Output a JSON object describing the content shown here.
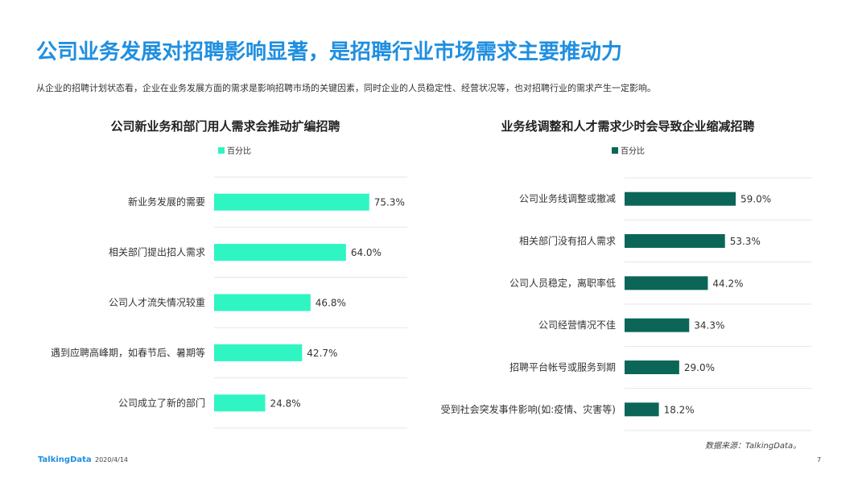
{
  "page": {
    "title": "公司业务发展对招聘影响显著，是招聘行业市场需求主要推动力",
    "subtitle": "从企业的招聘计划状态看，企业在业务发展方面的需求是影响招聘市场的关键因素，同时企业的人员稳定性、经营状况等，也对招聘行业的需求产生一定影响。"
  },
  "footer": {
    "logo": "TalkingData",
    "date": "2020/4/14",
    "source": "数据来源：TalkingData。",
    "page_number": "7"
  },
  "colors": {
    "title": "#1f8fe0",
    "left_bar": "#2ef5c2",
    "right_bar": "#0b6658"
  },
  "chart_data": [
    {
      "type": "bar",
      "orientation": "horizontal",
      "title": "公司新业务和部门用人需求会推动扩编招聘",
      "legend": "百分比",
      "legend_position": "top",
      "categories": [
        "新业务发展的需要",
        "相关部门提出招人需求",
        "公司人才流失情况较重",
        "遇到应聘高峰期，如春节后、暑期等",
        "公司成立了新的部门"
      ],
      "series": [
        {
          "name": "百分比",
          "values": [
            75.3,
            64.0,
            46.8,
            42.7,
            24.8
          ]
        }
      ],
      "value_labels": [
        "75.3%",
        "64.0%",
        "46.8%",
        "42.7%",
        "24.8%"
      ],
      "xlim": [
        0,
        100
      ],
      "grid": true
    },
    {
      "type": "bar",
      "orientation": "horizontal",
      "title": "业务线调整和人才需求少时会导致企业缩减招聘",
      "legend": "百分比",
      "legend_position": "top",
      "categories": [
        "公司业务线调整或撤减",
        "相关部门没有招人需求",
        "公司人员稳定，离职率低",
        "公司经营情况不佳",
        "招聘平台帐号或服务到期",
        "受到社会突发事件影响(如:疫情、灾害等)"
      ],
      "series": [
        {
          "name": "百分比",
          "values": [
            59.0,
            53.3,
            44.2,
            34.3,
            29.0,
            18.2
          ]
        }
      ],
      "value_labels": [
        "59.0%",
        "53.3%",
        "44.2%",
        "34.3%",
        "29.0%",
        "18.2%"
      ],
      "xlim": [
        0,
        100
      ],
      "grid": true
    }
  ]
}
